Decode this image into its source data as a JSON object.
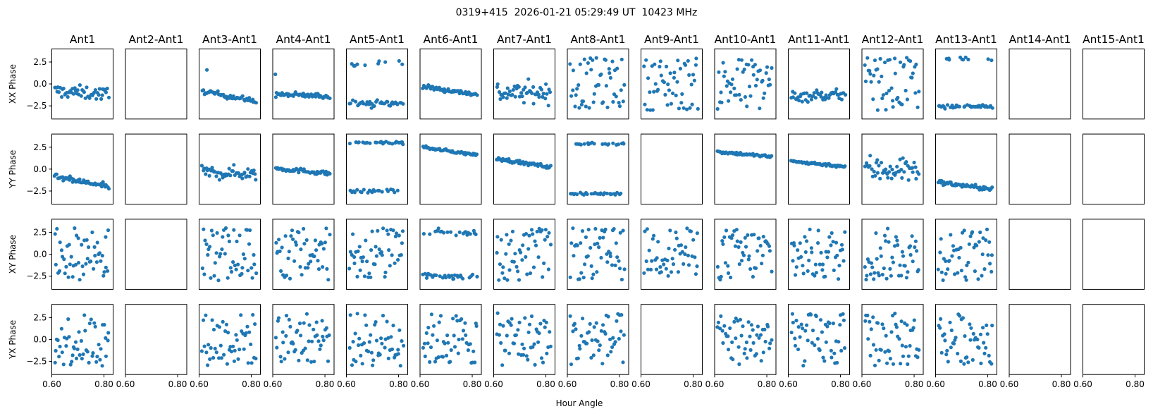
{
  "chart_data": {
    "type": "scatter",
    "title": "0319+415  2026-01-21 05:29:49 UT  10423 MHz",
    "xlabel": "Hour Angle",
    "columns": [
      "Ant1",
      "Ant2-Ant1",
      "Ant3-Ant1",
      "Ant4-Ant1",
      "Ant5-Ant1",
      "Ant6-Ant1",
      "Ant7-Ant1",
      "Ant8-Ant1",
      "Ant9-Ant1",
      "Ant10-Ant1",
      "Ant11-Ant1",
      "Ant12-Ant1",
      "Ant13-Ant1",
      "Ant14-Ant1",
      "Ant15-Ant1"
    ],
    "rows": [
      "XX Phase",
      "YY Phase",
      "XY Phase",
      "YX Phase"
    ],
    "xlim": [
      0.6,
      0.835
    ],
    "ylim": [
      -4,
      4
    ],
    "xticks": [
      0.6,
      0.8
    ],
    "xtick_labels": [
      "0.60",
      "0.80"
    ],
    "yticks": [
      2.5,
      0.0,
      -2.5
    ],
    "ytick_labels": [
      "2.5",
      "0.0",
      "−2.5"
    ],
    "x_range_of_points": [
      0.61,
      0.82
    ],
    "points_per_panel": 50,
    "marker_color": "#1f77b4",
    "note": "Per-panel point clouds are described by approximate models (trend: linear y0->y1 with noise; uniform: spread across phase range; bimodal: clusters at hi/lo; empty: no data)",
    "panels": [
      [
        {
          "model": "trend",
          "y0": -0.8,
          "y1": -1.2,
          "noise": 0.9
        },
        {
          "model": "empty"
        },
        {
          "model": "trend",
          "y0": -0.8,
          "y1": -2.0,
          "noise": 0.35,
          "outliers": [
            [
              0.63,
              1.6
            ]
          ]
        },
        {
          "model": "trend",
          "y0": -1.2,
          "y1": -1.4,
          "noise": 0.35,
          "outliers": [
            [
              0.61,
              1.1
            ]
          ]
        },
        {
          "model": "bimodal",
          "hi": 2.5,
          "lo": -2.2,
          "frac_hi": 0.35,
          "noise": 0.6
        },
        {
          "model": "trend",
          "y0": -0.3,
          "y1": -1.2,
          "noise": 0.3
        },
        {
          "model": "trend",
          "y0": -1.0,
          "y1": -1.0,
          "noise": 1.4
        },
        {
          "model": "uniform",
          "lo": -2.8,
          "hi": 3.0
        },
        {
          "model": "uniform",
          "lo": -3.0,
          "hi": 3.0
        },
        {
          "model": "uniform",
          "lo": -3.1,
          "hi": 3.1
        },
        {
          "model": "trend",
          "y0": -1.4,
          "y1": -1.2,
          "noise": 0.8
        },
        {
          "model": "uniform",
          "lo": -3.0,
          "hi": 3.0
        },
        {
          "model": "bimodal",
          "hi": 2.9,
          "lo": -2.6,
          "frac_hi": 0.15,
          "noise": 0.3
        },
        {
          "model": "empty"
        },
        {
          "model": "empty"
        }
      ],
      [
        {
          "model": "trend",
          "y0": -0.9,
          "y1": -2.0,
          "noise": 0.4
        },
        {
          "model": "empty"
        },
        {
          "model": "trend",
          "y0": -0.4,
          "y1": -0.5,
          "noise": 0.9
        },
        {
          "model": "trend",
          "y0": 0.1,
          "y1": -0.5,
          "noise": 0.3
        },
        {
          "model": "bimodal",
          "hi": 3.0,
          "lo": -2.5,
          "frac_hi": 0.45,
          "noise": 0.25
        },
        {
          "model": "trend",
          "y0": 2.5,
          "y1": 1.6,
          "noise": 0.18
        },
        {
          "model": "trend",
          "y0": 1.2,
          "y1": 0.2,
          "noise": 0.25
        },
        {
          "model": "bimodal",
          "hi": 2.9,
          "lo": -2.8,
          "frac_hi": 0.45,
          "noise": 0.2
        },
        {
          "model": "empty"
        },
        {
          "model": "trend",
          "y0": 2.0,
          "y1": 1.4,
          "noise": 0.2
        },
        {
          "model": "trend",
          "y0": 0.9,
          "y1": 0.3,
          "noise": 0.2
        },
        {
          "model": "trend",
          "y0": 0.0,
          "y1": 0.0,
          "noise": 1.9
        },
        {
          "model": "trend",
          "y0": -1.5,
          "y1": -2.3,
          "noise": 0.3
        },
        {
          "model": "empty"
        },
        {
          "model": "empty"
        }
      ],
      [
        {
          "model": "uniform",
          "lo": -2.9,
          "hi": 3.1
        },
        {
          "model": "empty"
        },
        {
          "model": "uniform",
          "lo": -3.0,
          "hi": 3.0
        },
        {
          "model": "uniform",
          "lo": -3.0,
          "hi": 3.0
        },
        {
          "model": "uniform",
          "lo": -3.0,
          "hi": 3.1
        },
        {
          "model": "bimodal",
          "hi": 2.5,
          "lo": -2.5,
          "frac_hi": 0.4,
          "noise": 0.45
        },
        {
          "model": "uniform",
          "lo": -3.0,
          "hi": 3.0
        },
        {
          "model": "uniform",
          "lo": -3.0,
          "hi": 3.0
        },
        {
          "model": "uniform",
          "lo": -2.5,
          "hi": 3.0
        },
        {
          "model": "uniform",
          "lo": -3.0,
          "hi": 3.0
        },
        {
          "model": "uniform",
          "lo": -3.0,
          "hi": 2.9
        },
        {
          "model": "uniform",
          "lo": -3.0,
          "hi": 3.0
        },
        {
          "model": "uniform",
          "lo": -3.0,
          "hi": 2.9
        },
        {
          "model": "empty"
        },
        {
          "model": "empty"
        }
      ],
      [
        {
          "model": "uniform",
          "lo": -3.1,
          "hi": 2.9
        },
        {
          "model": "empty"
        },
        {
          "model": "uniform",
          "lo": -3.0,
          "hi": 3.0
        },
        {
          "model": "uniform",
          "lo": -2.7,
          "hi": 3.0
        },
        {
          "model": "uniform",
          "lo": -3.1,
          "hi": 3.0
        },
        {
          "model": "uniform",
          "lo": -3.0,
          "hi": 3.0
        },
        {
          "model": "uniform",
          "lo": -3.0,
          "hi": 3.0
        },
        {
          "model": "uniform",
          "lo": -3.0,
          "hi": 3.0
        },
        {
          "model": "empty"
        },
        {
          "model": "uniform",
          "lo": -3.0,
          "hi": 3.0
        },
        {
          "model": "uniform",
          "lo": -3.1,
          "hi": 3.0
        },
        {
          "model": "uniform",
          "lo": -3.1,
          "hi": 3.0
        },
        {
          "model": "uniform",
          "lo": -2.8,
          "hi": 3.0
        },
        {
          "model": "empty"
        },
        {
          "model": "empty"
        }
      ]
    ]
  }
}
